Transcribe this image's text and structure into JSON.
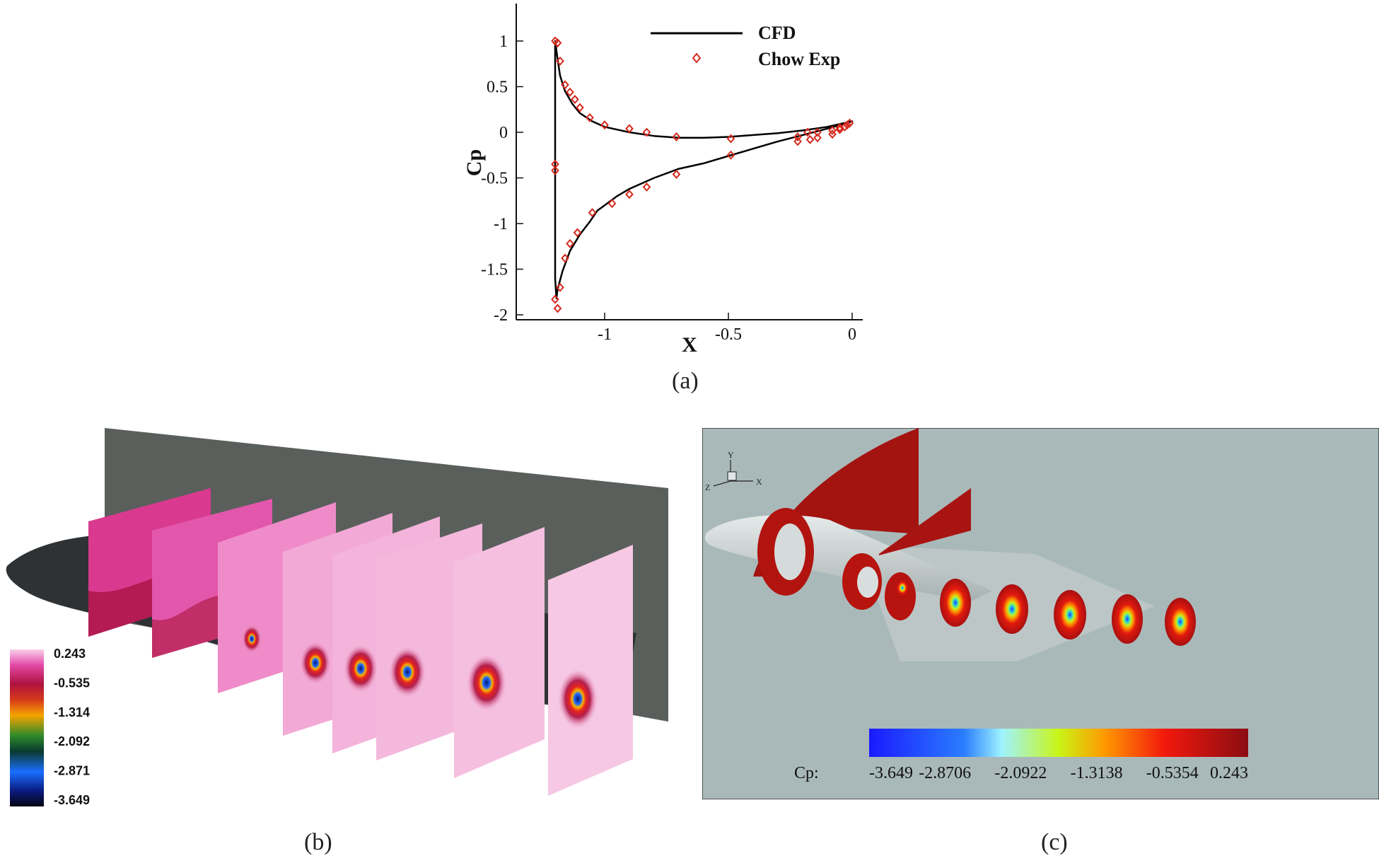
{
  "chart_data": [
    {
      "type": "line",
      "panel": "(a)",
      "xlabel": "X",
      "ylabel": "Cp",
      "xlim": [
        -1.3,
        0.05
      ],
      "ylim": [
        -2.05,
        1.4
      ],
      "xticks": [
        -1,
        -0.5,
        0
      ],
      "xtick_labels": [
        "-1",
        "-0.5",
        "0"
      ],
      "yticks": [
        1,
        0.5,
        0,
        -0.5,
        -1,
        -1.5,
        -2
      ],
      "ytick_labels": [
        "1",
        "0.5",
        "0",
        "-0.5",
        "-1",
        "-1.5",
        "-2"
      ],
      "legend_position": "top-right",
      "series": [
        {
          "name": "CFD",
          "style": "solid-line",
          "color": "#000000",
          "x": [
            -1.2,
            -1.2,
            -1.198,
            -1.19,
            -1.18,
            -1.16,
            -1.13,
            -1.1,
            -1.05,
            -1.0,
            -0.9,
            -0.8,
            -0.7,
            -0.6,
            -0.5,
            -0.4,
            -0.3,
            -0.2,
            -0.1,
            -0.05,
            0.0,
            0.0,
            -0.05,
            -0.1,
            -0.2,
            -0.3,
            -0.4,
            -0.5,
            -0.6,
            -0.7,
            -0.8,
            -0.9,
            -0.95,
            -1.0,
            -1.03,
            -1.06,
            -1.1,
            -1.14,
            -1.17,
            -1.19,
            -1.195,
            -1.2,
            -1.2
          ],
          "y": [
            0.3,
            1.0,
            0.96,
            0.8,
            0.62,
            0.45,
            0.31,
            0.21,
            0.12,
            0.06,
            0.0,
            -0.04,
            -0.06,
            -0.06,
            -0.05,
            -0.03,
            -0.01,
            0.02,
            0.06,
            0.09,
            0.12,
            0.12,
            0.08,
            0.04,
            -0.03,
            -0.1,
            -0.18,
            -0.26,
            -0.34,
            -0.4,
            -0.5,
            -0.62,
            -0.7,
            -0.8,
            -0.86,
            -0.98,
            -1.12,
            -1.3,
            -1.52,
            -1.72,
            -1.82,
            -1.6,
            0.3
          ]
        },
        {
          "name": "Chow Exp",
          "style": "open-diamond",
          "color": "#d42a1e",
          "x": [
            -1.2,
            -1.19,
            -1.18,
            -1.16,
            -1.14,
            -1.12,
            -1.1,
            -1.06,
            -1.0,
            -0.9,
            -0.83,
            -0.71,
            -0.49,
            -0.22,
            -0.18,
            -0.14,
            -0.08,
            -0.05,
            -0.02,
            -0.01,
            -1.2,
            -1.2,
            -1.2,
            -1.19,
            -1.18,
            -1.16,
            -1.14,
            -1.11,
            -1.05,
            -0.97,
            -0.9,
            -0.83,
            -0.71,
            -0.49,
            -0.22,
            -0.17,
            -0.14,
            -0.08,
            -0.05,
            -0.03
          ],
          "y": [
            1.0,
            0.98,
            0.78,
            0.52,
            0.44,
            0.36,
            0.27,
            0.16,
            0.08,
            0.04,
            0.0,
            -0.05,
            -0.07,
            -0.05,
            0.0,
            0.0,
            0.02,
            0.05,
            0.08,
            0.1,
            -0.35,
            -0.42,
            -1.83,
            -1.93,
            -1.7,
            -1.38,
            -1.22,
            -1.1,
            -0.88,
            -0.78,
            -0.68,
            -0.6,
            -0.46,
            -0.25,
            -0.1,
            -0.08,
            -0.06,
            -0.02,
            0.03,
            0.06
          ]
        }
      ]
    },
    {
      "type": "heatmap",
      "panel": "(b)",
      "colorbar_labels": [
        "0.243",
        "-0.535",
        "-1.314",
        "-2.092",
        "-2.871",
        "-3.649"
      ]
    },
    {
      "type": "heatmap",
      "panel": "(c)",
      "colorbar_title": "Cp:",
      "colorbar_labels": [
        "-3.649",
        "-2.8706",
        "-2.0922",
        "-1.3138",
        "-0.5354",
        "0.243"
      ],
      "axis_triad": {
        "y": "Y",
        "x": "X",
        "z": "Z"
      }
    }
  ],
  "captions": {
    "a": "(a)",
    "b": "(b)",
    "c": "(c)"
  },
  "colors": {
    "cfd": "#000000",
    "exp": "#d42a1e",
    "fuselage_b": "#2f3234",
    "wall_b": "#5a5f5c",
    "background_c": "#a9b9b9",
    "fuselage_c": "#d3d9d9",
    "vortex_red": "#b31212"
  }
}
